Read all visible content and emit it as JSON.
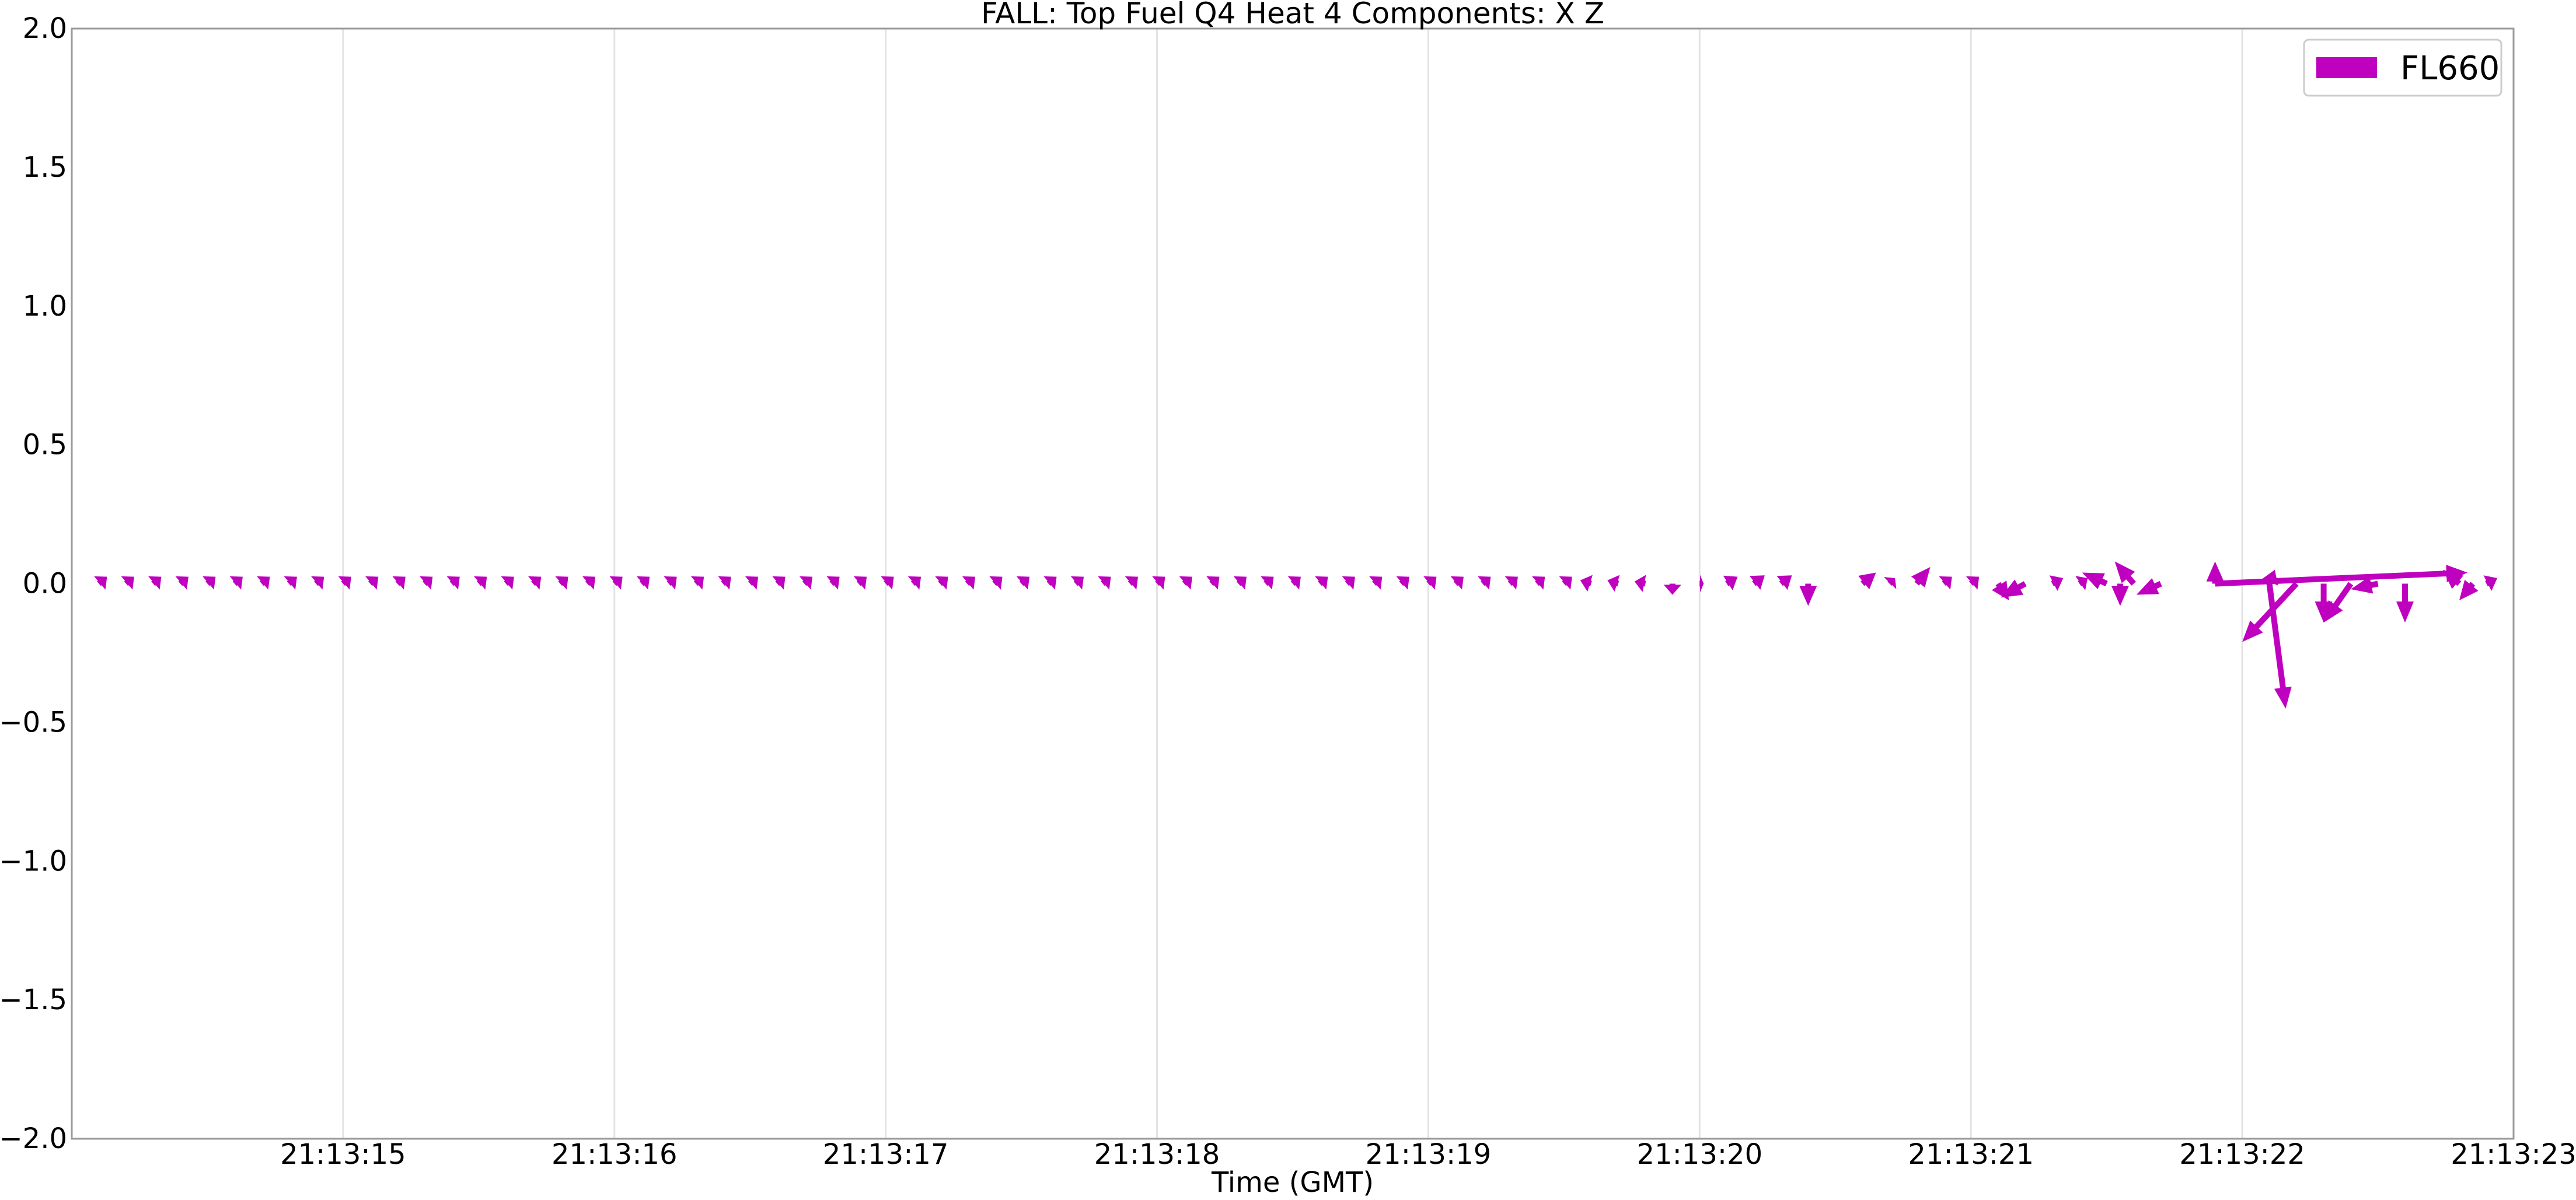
{
  "chart_data": {
    "type": "quiver",
    "title": "FALL: Top Fuel Q4 Heat 4 Components: X Z",
    "xlabel": "Time (GMT)",
    "ylabel": "",
    "x_ticks": [
      "21:13:15",
      "21:13:16",
      "21:13:17",
      "21:13:18",
      "21:13:19",
      "21:13:20",
      "21:13:21",
      "21:13:22",
      "21:13:23"
    ],
    "x_tick_values": [
      1,
      2,
      3,
      4,
      5,
      6,
      7,
      8,
      9
    ],
    "xlim": [
      0,
      9
    ],
    "y_ticks": [
      "2.0",
      "1.5",
      "1.0",
      "0.5",
      "0.0",
      "−0.5",
      "−1.0",
      "−1.5",
      "−2.0"
    ],
    "y_tick_values": [
      2.0,
      1.5,
      1.0,
      0.5,
      0.0,
      -0.5,
      -1.0,
      -1.5,
      -2.0
    ],
    "ylim": [
      -2.0,
      2.0
    ],
    "grid": "vertical",
    "legend": {
      "position": "top-right"
    },
    "series": [
      {
        "name": "FL660",
        "color": "#bf00bf",
        "vectors": [
          {
            "t": 0.1,
            "u": 0.03,
            "v": 0.025
          },
          {
            "t": 0.2,
            "u": 0.03,
            "v": 0.025
          },
          {
            "t": 0.3,
            "u": 0.03,
            "v": 0.025
          },
          {
            "t": 0.4,
            "u": 0.03,
            "v": 0.025
          },
          {
            "t": 0.5,
            "u": 0.03,
            "v": 0.025
          },
          {
            "t": 0.6,
            "u": 0.03,
            "v": 0.025
          },
          {
            "t": 0.7,
            "u": 0.03,
            "v": 0.025
          },
          {
            "t": 0.8,
            "u": 0.03,
            "v": 0.025
          },
          {
            "t": 0.9,
            "u": 0.03,
            "v": 0.025
          },
          {
            "t": 1.0,
            "u": 0.03,
            "v": 0.025
          },
          {
            "t": 1.1,
            "u": 0.03,
            "v": 0.025
          },
          {
            "t": 1.2,
            "u": 0.03,
            "v": 0.025
          },
          {
            "t": 1.3,
            "u": 0.03,
            "v": 0.025
          },
          {
            "t": 1.4,
            "u": 0.03,
            "v": 0.025
          },
          {
            "t": 1.5,
            "u": 0.03,
            "v": 0.025
          },
          {
            "t": 1.6,
            "u": 0.03,
            "v": 0.025
          },
          {
            "t": 1.7,
            "u": 0.03,
            "v": 0.025
          },
          {
            "t": 1.8,
            "u": 0.03,
            "v": 0.025
          },
          {
            "t": 1.9,
            "u": 0.03,
            "v": 0.025
          },
          {
            "t": 2.0,
            "u": 0.03,
            "v": 0.025
          },
          {
            "t": 2.1,
            "u": 0.03,
            "v": 0.025
          },
          {
            "t": 2.2,
            "u": 0.03,
            "v": 0.025
          },
          {
            "t": 2.3,
            "u": 0.03,
            "v": 0.025
          },
          {
            "t": 2.4,
            "u": 0.03,
            "v": 0.025
          },
          {
            "t": 2.5,
            "u": 0.03,
            "v": 0.025
          },
          {
            "t": 2.6,
            "u": 0.03,
            "v": 0.025
          },
          {
            "t": 2.7,
            "u": 0.03,
            "v": 0.025
          },
          {
            "t": 2.8,
            "u": 0.03,
            "v": 0.025
          },
          {
            "t": 2.9,
            "u": 0.03,
            "v": 0.025
          },
          {
            "t": 3.0,
            "u": 0.03,
            "v": 0.025
          },
          {
            "t": 3.1,
            "u": 0.03,
            "v": 0.025
          },
          {
            "t": 3.2,
            "u": 0.03,
            "v": 0.025
          },
          {
            "t": 3.3,
            "u": 0.03,
            "v": 0.025
          },
          {
            "t": 3.4,
            "u": 0.03,
            "v": 0.025
          },
          {
            "t": 3.5,
            "u": 0.03,
            "v": 0.025
          },
          {
            "t": 3.6,
            "u": 0.03,
            "v": 0.025
          },
          {
            "t": 3.7,
            "u": 0.03,
            "v": 0.025
          },
          {
            "t": 3.8,
            "u": 0.03,
            "v": 0.025
          },
          {
            "t": 3.9,
            "u": 0.03,
            "v": 0.025
          },
          {
            "t": 4.0,
            "u": 0.03,
            "v": 0.025
          },
          {
            "t": 4.1,
            "u": 0.03,
            "v": 0.025
          },
          {
            "t": 4.2,
            "u": 0.03,
            "v": 0.025
          },
          {
            "t": 4.3,
            "u": 0.03,
            "v": 0.025
          },
          {
            "t": 4.4,
            "u": 0.03,
            "v": 0.025
          },
          {
            "t": 4.5,
            "u": 0.03,
            "v": 0.025
          },
          {
            "t": 4.6,
            "u": 0.03,
            "v": 0.025
          },
          {
            "t": 4.7,
            "u": 0.03,
            "v": 0.025
          },
          {
            "t": 4.8,
            "u": 0.03,
            "v": 0.025
          },
          {
            "t": 4.9,
            "u": 0.03,
            "v": 0.025
          },
          {
            "t": 5.0,
            "u": 0.03,
            "v": 0.025
          },
          {
            "t": 5.1,
            "u": 0.03,
            "v": 0.025
          },
          {
            "t": 5.2,
            "u": 0.03,
            "v": 0.025
          },
          {
            "t": 5.3,
            "u": 0.03,
            "v": 0.025
          },
          {
            "t": 5.4,
            "u": 0.03,
            "v": 0.025
          },
          {
            "t": 5.5,
            "u": 0.03,
            "v": 0.025
          },
          {
            "t": 5.6,
            "u": -0.04,
            "v": 0.012
          },
          {
            "t": 5.7,
            "u": -0.04,
            "v": 0.012
          },
          {
            "t": 5.8,
            "u": -0.04,
            "v": 0.008
          },
          {
            "t": 5.9,
            "u": 0.0,
            "v": -0.04
          },
          {
            "t": 6.0,
            "u": 0.015,
            "v": 0.0
          },
          {
            "t": 6.1,
            "u": 0.04,
            "v": 0.025
          },
          {
            "t": 6.2,
            "u": 0.04,
            "v": 0.03
          },
          {
            "t": 6.3,
            "u": 0.04,
            "v": 0.03
          },
          {
            "t": 6.4,
            "u": 0.0,
            "v": -0.08
          },
          {
            "t": 6.5,
            "u": 0.0,
            "v": 0.0
          },
          {
            "t": 6.6,
            "u": 0.05,
            "v": 0.04
          },
          {
            "t": 6.7,
            "u": 0.02,
            "v": 0.02
          },
          {
            "t": 6.8,
            "u": 0.05,
            "v": 0.06
          },
          {
            "t": 6.9,
            "u": 0.03,
            "v": 0.025
          },
          {
            "t": 7.0,
            "u": 0.03,
            "v": 0.025
          },
          {
            "t": 7.1,
            "u": 0.04,
            "v": -0.06
          },
          {
            "t": 7.2,
            "u": -0.09,
            "v": -0.05
          },
          {
            "t": 7.3,
            "u": 0.04,
            "v": 0.02
          },
          {
            "t": 7.4,
            "u": 0.03,
            "v": 0.02
          },
          {
            "t": 7.5,
            "u": -0.09,
            "v": 0.04
          },
          {
            "t": 7.55,
            "u": 0.0,
            "v": -0.08
          },
          {
            "t": 7.6,
            "u": -0.07,
            "v": 0.08
          },
          {
            "t": 7.7,
            "u": -0.09,
            "v": -0.04
          },
          {
            "t": 7.8,
            "u": 0.0,
            "v": 0.0
          },
          {
            "t": 7.9,
            "u": 0.0,
            "v": 0.08
          },
          {
            "t": 8.1,
            "u": 0.02,
            "v": 0.05
          },
          {
            "t": 7.9,
            "u": 0.93,
            "v": 0.04
          },
          {
            "t": 8.2,
            "u": -0.2,
            "v": -0.21
          },
          {
            "t": 8.1,
            "u": 0.06,
            "v": -0.45
          },
          {
            "t": 8.3,
            "u": 0.0,
            "v": -0.14
          },
          {
            "t": 8.4,
            "u": -0.1,
            "v": -0.14
          },
          {
            "t": 8.5,
            "u": -0.1,
            "v": -0.02
          },
          {
            "t": 8.6,
            "u": 0.0,
            "v": -0.14
          },
          {
            "t": 8.8,
            "u": -0.06,
            "v": 0.05
          },
          {
            "t": 8.85,
            "u": -0.05,
            "v": -0.06
          },
          {
            "t": 8.9,
            "u": 0.04,
            "v": 0.02
          }
        ]
      }
    ]
  }
}
